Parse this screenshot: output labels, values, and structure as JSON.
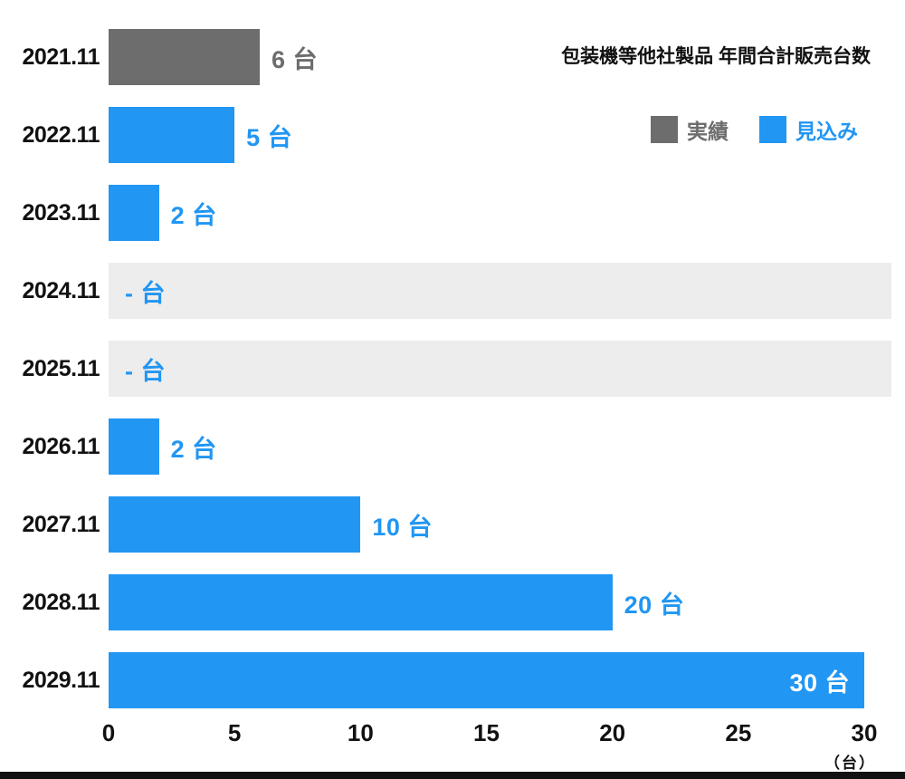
{
  "title": "包装機等他社製品 年間合計販売台数",
  "legend": {
    "actual_label": "実績",
    "forecast_label": "見込み"
  },
  "colors": {
    "actual": "#6d6d6d",
    "forecast": "#2196f3",
    "empty_track": "#ededed",
    "footer_bar": "#111111"
  },
  "unit_label": "（台）",
  "chart_data": {
    "type": "bar",
    "orientation": "horizontal",
    "title": "包装機等他社製品 年間合計販売台数",
    "xlabel": "台",
    "xlim": [
      0,
      30
    ],
    "ticks": [
      0,
      5,
      10,
      15,
      20,
      25,
      30
    ],
    "grid": false,
    "legend_position": "top-right",
    "series_names": [
      "実績",
      "見込み"
    ],
    "rows": [
      {
        "category": "2021.11",
        "value": 6,
        "label": "6 台",
        "series": "実績"
      },
      {
        "category": "2022.11",
        "value": 5,
        "label": "5 台",
        "series": "見込み"
      },
      {
        "category": "2023.11",
        "value": 2,
        "label": "2 台",
        "series": "見込み"
      },
      {
        "category": "2024.11",
        "value": null,
        "label": "- 台",
        "series": "見込み"
      },
      {
        "category": "2025.11",
        "value": null,
        "label": "- 台",
        "series": "見込み"
      },
      {
        "category": "2026.11",
        "value": 2,
        "label": "2 台",
        "series": "見込み"
      },
      {
        "category": "2027.11",
        "value": 10,
        "label": "10 台",
        "series": "見込み"
      },
      {
        "category": "2028.11",
        "value": 20,
        "label": "20 台",
        "series": "見込み"
      },
      {
        "category": "2029.11",
        "value": 30,
        "label": "30 台",
        "series": "見込み",
        "label_inside": true
      }
    ]
  }
}
